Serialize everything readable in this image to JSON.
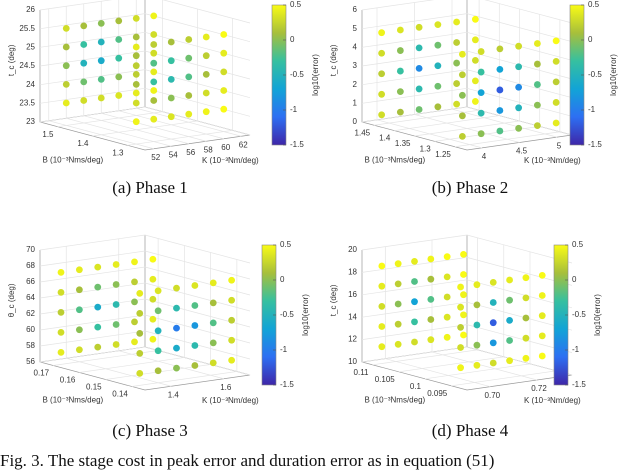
{
  "caption": "Fig. 3.  The stage cost in peak error and duration error as in equation (51)",
  "chart_data": [
    {
      "type": "scatter3d",
      "title": "(a) Phase 1",
      "x_label": "K (10⁻³Nm/deg)",
      "y_label": "B (10⁻³Nms/deg)",
      "z_label": "t_c (deg)",
      "colorbar_label": "log10(error)",
      "xlim": [
        51,
        63
      ],
      "xticks": [
        52,
        54,
        56,
        58,
        60,
        62
      ],
      "ylim": [
        1.25,
        1.55
      ],
      "yticks": [
        1.3,
        1.4,
        1.5
      ],
      "zlim": [
        23,
        26
      ],
      "zticks": [
        23,
        23.5,
        24,
        24.5,
        25,
        25.5,
        26
      ],
      "clim": [
        -1.5,
        0.5
      ],
      "cticks": [
        -1.5,
        -1,
        -0.5,
        0,
        0.5
      ],
      "k_grid": [
        52,
        54,
        56,
        58,
        60,
        62
      ],
      "b_grid": [
        1.3,
        1.5
      ],
      "layers": [
        {
          "z": 23.6,
          "values": [
            [
              0.45,
              0.4,
              0.35,
              0.4,
              0.45,
              0.5
            ],
            [
              0.4,
              0.3,
              0.3,
              0.35,
              0.4,
              0.45
            ]
          ]
        },
        {
          "z": 24.1,
          "values": [
            [
              0.3,
              0.1,
              0,
              0.1,
              0.3,
              0.4
            ],
            [
              0.2,
              -0.1,
              -0.2,
              0,
              0.2,
              0.4
            ]
          ]
        },
        {
          "z": 24.6,
          "values": [
            [
              0.1,
              -0.3,
              -0.4,
              -0.2,
              0.1,
              0.3
            ],
            [
              0,
              -0.5,
              -0.6,
              -0.3,
              0.1,
              0.3
            ]
          ]
        },
        {
          "z": 25.1,
          "values": [
            [
              0.2,
              -0.2,
              -0.3,
              -0.1,
              0.2,
              0.4
            ],
            [
              0.1,
              -0.3,
              -0.5,
              -0.2,
              0.1,
              0.3
            ]
          ]
        },
        {
          "z": 25.6,
          "values": [
            [
              0.4,
              0.2,
              0.1,
              0.2,
              0.4,
              0.5
            ],
            [
              0.3,
              0.1,
              0,
              0.1,
              0.3,
              0.45
            ]
          ]
        }
      ]
    },
    {
      "type": "scatter3d",
      "title": "(b) Phase 2",
      "x_label": "K (10⁻³Nm/deg)",
      "y_label": "B (10⁻³Nms/deg)",
      "z_label": "t_c (deg)",
      "colorbar_label": "log10(error)",
      "xlim": [
        3.8,
        5.2
      ],
      "xticks": [
        4,
        4.5,
        5
      ],
      "ylim": [
        1.22,
        1.48
      ],
      "yticks": [
        1.25,
        1.3,
        1.35,
        1.4,
        1.45
      ],
      "zlim": [
        0,
        6
      ],
      "zticks": [
        0,
        1,
        2,
        3,
        4,
        5,
        6
      ],
      "clim": [
        -1.5,
        0.5
      ],
      "cticks": [
        -1.5,
        -1,
        -0.5,
        0,
        0.5
      ],
      "k_grid": [
        3.9,
        4.15,
        4.4,
        4.65,
        4.9,
        5.15
      ],
      "b_grid": [
        1.25,
        1.45
      ],
      "layers": [
        {
          "z": 0.5,
          "values": [
            [
              0.2,
              0,
              -0.2,
              0,
              0.2,
              0.4
            ],
            [
              0.3,
              0.1,
              -0.1,
              0.1,
              0.3,
              0.45
            ]
          ]
        },
        {
          "z": 1.6,
          "values": [
            [
              0.1,
              -0.4,
              -0.8,
              -0.5,
              0,
              0.3
            ],
            [
              0.3,
              0,
              -0.4,
              -0.1,
              0.2,
              0.4
            ]
          ]
        },
        {
          "z": 2.7,
          "values": [
            [
              0,
              -0.7,
              -1.2,
              -0.9,
              -0.2,
              0.2
            ],
            [
              0.2,
              -0.3,
              -0.9,
              -0.5,
              0,
              0.3
            ]
          ]
        },
        {
          "z": 3.8,
          "values": [
            [
              0.2,
              -0.3,
              -0.7,
              -0.4,
              0.1,
              0.3
            ],
            [
              0.3,
              0,
              -0.4,
              -0.1,
              0.2,
              0.4
            ]
          ]
        },
        {
          "z": 4.9,
          "values": [
            [
              0.4,
              0.3,
              0.2,
              0.3,
              0.4,
              0.5
            ],
            [
              0.45,
              0.35,
              0.3,
              0.35,
              0.4,
              0.5
            ]
          ]
        }
      ]
    },
    {
      "type": "scatter3d",
      "title": "(c) Phase 3",
      "x_label": "K (10⁻³Nm/deg)",
      "y_label": "B (10⁻³Nms/deg)",
      "z_label": "θ_c (deg)",
      "colorbar_label": "log10(error)",
      "xlim": [
        1.3,
        1.7
      ],
      "xticks": [
        1.4,
        1.6
      ],
      "ylim": [
        0.135,
        0.175
      ],
      "yticks": [
        0.14,
        0.15,
        0.16,
        0.17
      ],
      "zlim": [
        56,
        70
      ],
      "zticks": [
        56,
        58,
        60,
        62,
        64,
        66,
        68,
        70
      ],
      "clim": [
        -1.5,
        0.5
      ],
      "cticks": [
        -1.5,
        -1,
        -0.5,
        0,
        0.5
      ],
      "k_grid": [
        1.33,
        1.4,
        1.47,
        1.54,
        1.61,
        1.68
      ],
      "b_grid": [
        0.14,
        0.17
      ],
      "layers": [
        {
          "z": 57.5,
          "values": [
            [
              0.3,
              0.1,
              0,
              0.1,
              0.3,
              0.4
            ],
            [
              0.4,
              0.3,
              0.2,
              0.3,
              0.4,
              0.45
            ]
          ]
        },
        {
          "z": 60,
          "values": [
            [
              0.2,
              -0.3,
              -0.6,
              -0.4,
              0,
              0.3
            ],
            [
              0.3,
              0,
              -0.3,
              -0.1,
              0.2,
              0.4
            ]
          ]
        },
        {
          "z": 62.5,
          "values": [
            [
              0.1,
              -0.5,
              -1,
              -0.8,
              -0.2,
              0.2
            ],
            [
              0.2,
              -0.2,
              -0.6,
              -0.4,
              0,
              0.3
            ]
          ]
        },
        {
          "z": 65,
          "values": [
            [
              0.2,
              -0.1,
              -0.4,
              -0.2,
              0.1,
              0.3
            ],
            [
              0.3,
              0.1,
              -0.1,
              0,
              0.2,
              0.4
            ]
          ]
        },
        {
          "z": 67.5,
          "values": [
            [
              0.4,
              0.35,
              0.3,
              0.35,
              0.4,
              0.45
            ],
            [
              0.45,
              0.4,
              0.35,
              0.4,
              0.45,
              0.5
            ]
          ]
        }
      ]
    },
    {
      "type": "scatter3d",
      "title": "(d) Phase 4",
      "x_label": "K (10⁻³Nm/deg)",
      "y_label": "B (10⁻³Nms/deg)",
      "z_label": "t_c (deg)",
      "colorbar_label": "log10(error)",
      "xlim": [
        0.69,
        0.735
      ],
      "xticks": [
        {
          "value": 0.7,
          "label": "0.70"
        },
        0.72
      ],
      "ylim": [
        0.092,
        0.112
      ],
      "yticks": [
        0.095,
        0.1,
        0.105,
        0.11
      ],
      "zlim": [
        10,
        20
      ],
      "zticks": [
        10,
        12,
        14,
        16,
        18,
        20
      ],
      "clim": [
        -1.5,
        0.5
      ],
      "cticks": [
        -1.5,
        -1,
        -0.5,
        0,
        0.5
      ],
      "k_grid": [
        0.694,
        0.701,
        0.708,
        0.715,
        0.722,
        0.729
      ],
      "b_grid": [
        0.095,
        0.11
      ],
      "layers": [
        {
          "z": 11.5,
          "values": [
            [
              0.45,
              0.4,
              0.3,
              0.4,
              0.45,
              0.5
            ],
            [
              0.4,
              0.35,
              0.3,
              0.35,
              0.45,
              0.5
            ]
          ]
        },
        {
          "z": 13.3,
          "values": [
            [
              0.3,
              0,
              -0.8,
              -0.2,
              0.3,
              0.4
            ],
            [
              0.4,
              0.2,
              -0.3,
              0.1,
              0.35,
              0.45
            ]
          ]
        },
        {
          "z": 15.1,
          "values": [
            [
              0.2,
              -0.4,
              -1.2,
              -0.6,
              0.1,
              0.4
            ],
            [
              0.3,
              0,
              -0.7,
              -0.2,
              0.3,
              0.45
            ]
          ]
        },
        {
          "z": 16.9,
          "values": [
            [
              0.35,
              0.1,
              -0.5,
              -0.1,
              0.3,
              0.45
            ],
            [
              0.4,
              0.2,
              -0.2,
              0.1,
              0.35,
              0.5
            ]
          ]
        },
        {
          "z": 18.7,
          "values": [
            [
              0.45,
              0.4,
              0.35,
              0.4,
              0.45,
              0.5
            ],
            [
              0.5,
              0.45,
              0.4,
              0.45,
              0.5,
              0.5
            ]
          ]
        }
      ]
    }
  ]
}
